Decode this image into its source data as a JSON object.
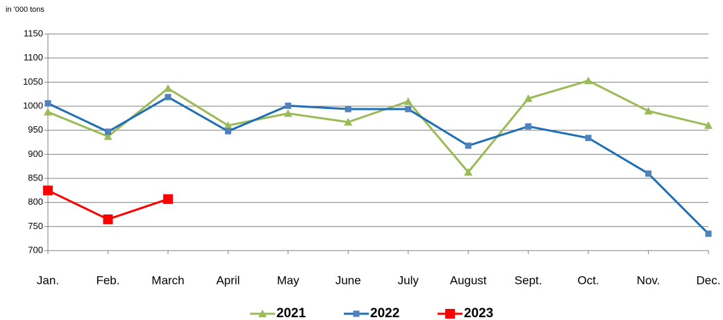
{
  "chart_data": {
    "type": "line",
    "y_label": "in '000 tons",
    "categories": [
      "Jan.",
      "Feb.",
      "March",
      "April",
      "May",
      "June",
      "July",
      "August",
      "Sept.",
      "Oct.",
      "Nov.",
      "Dec."
    ],
    "series": [
      {
        "name": "2021",
        "color": "#9bbb59",
        "marker": "triangle",
        "values": [
          988,
          937,
          1037,
          960,
          985,
          967,
          1010,
          863,
          1016,
          1053,
          990,
          960
        ]
      },
      {
        "name": "2022",
        "color": "#1f6fb4",
        "marker_color": "#4f81bd",
        "marker": "square",
        "values": [
          1006,
          947,
          1019,
          948,
          1001,
          994,
          994,
          918,
          958,
          934,
          860,
          735
        ]
      },
      {
        "name": "2023",
        "color": "#ff0000",
        "marker": "square",
        "values": [
          825,
          765,
          807,
          null,
          null,
          null,
          null,
          null,
          null,
          null,
          null,
          null
        ]
      }
    ],
    "ylim": [
      700,
      1150
    ],
    "yticks": [
      700,
      750,
      800,
      850,
      900,
      950,
      1000,
      1050,
      1100,
      1150
    ],
    "grid": true
  }
}
